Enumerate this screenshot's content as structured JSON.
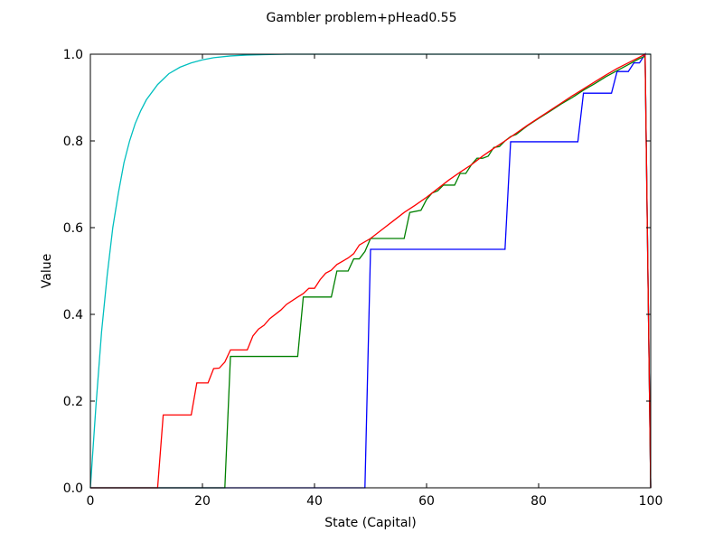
{
  "chart_data": {
    "type": "line",
    "title": "Gambler problem+pHead0.55",
    "xlabel": "State (Capital)",
    "ylabel": "Value",
    "xlim": [
      0,
      100
    ],
    "ylim": [
      0.0,
      1.0
    ],
    "xticks": [
      "0",
      "20",
      "40",
      "60",
      "80",
      "100"
    ],
    "yticks": [
      "0.0",
      "0.2",
      "0.4",
      "0.6",
      "0.8",
      "1.0"
    ],
    "grid": false,
    "series": [
      {
        "color": "#00bfbf",
        "x": [
          0,
          1,
          2,
          3,
          4,
          5,
          6,
          7,
          8,
          9,
          10,
          12,
          14,
          16,
          18,
          20,
          22,
          25,
          28,
          31,
          35,
          40,
          50,
          60,
          70,
          80,
          90,
          99,
          100
        ],
        "y": [
          0.0,
          0.19,
          0.36,
          0.49,
          0.6,
          0.68,
          0.75,
          0.8,
          0.84,
          0.87,
          0.895,
          0.93,
          0.955,
          0.97,
          0.98,
          0.987,
          0.992,
          0.996,
          0.998,
          0.999,
          1.0,
          1.0,
          1.0,
          1.0,
          1.0,
          1.0,
          1.0,
          1.0,
          1.0
        ]
      },
      {
        "color": "#0000ff",
        "x": [
          0,
          49,
          50,
          74,
          75,
          87,
          88,
          93,
          94,
          96,
          97,
          98,
          99,
          100
        ],
        "y": [
          0.0,
          0.0,
          0.55,
          0.55,
          0.798,
          0.798,
          0.91,
          0.91,
          0.96,
          0.96,
          0.98,
          0.98,
          1.0,
          0.0
        ]
      },
      {
        "color": "#008000",
        "x": [
          0,
          24,
          25,
          37,
          38,
          43,
          44,
          46,
          47,
          48,
          49,
          50,
          56,
          57,
          59,
          60,
          61,
          62,
          63,
          65,
          66,
          67,
          68,
          69,
          70,
          71,
          72,
          73,
          74,
          75,
          76,
          77,
          78,
          80,
          82,
          84,
          86,
          88,
          90,
          92,
          94,
          96,
          98,
          99,
          100
        ],
        "y": [
          0.0,
          0.0,
          0.303,
          0.303,
          0.44,
          0.44,
          0.5,
          0.5,
          0.528,
          0.528,
          0.545,
          0.575,
          0.575,
          0.635,
          0.64,
          0.665,
          0.68,
          0.685,
          0.698,
          0.698,
          0.725,
          0.725,
          0.745,
          0.76,
          0.76,
          0.765,
          0.785,
          0.787,
          0.8,
          0.81,
          0.815,
          0.825,
          0.835,
          0.852,
          0.868,
          0.885,
          0.9,
          0.917,
          0.932,
          0.948,
          0.962,
          0.976,
          0.99,
          0.995,
          0.0
        ]
      },
      {
        "color": "#ff0000",
        "x": [
          0,
          12,
          13,
          18,
          19,
          21,
          22,
          23,
          24,
          25,
          28,
          29,
          30,
          31,
          32,
          34,
          35,
          37,
          38,
          39,
          40,
          41,
          42,
          43,
          44,
          46,
          47,
          48,
          50,
          52,
          54,
          56,
          58,
          60,
          62,
          64,
          66,
          68,
          70,
          72,
          74,
          76,
          78,
          80,
          82,
          84,
          86,
          88,
          90,
          92,
          94,
          96,
          98,
          99,
          100
        ],
        "y": [
          0.0,
          0.0,
          0.168,
          0.168,
          0.242,
          0.242,
          0.275,
          0.276,
          0.29,
          0.318,
          0.318,
          0.35,
          0.366,
          0.375,
          0.39,
          0.41,
          0.423,
          0.44,
          0.448,
          0.46,
          0.46,
          0.48,
          0.495,
          0.502,
          0.515,
          0.53,
          0.54,
          0.56,
          0.575,
          0.595,
          0.615,
          0.635,
          0.652,
          0.67,
          0.69,
          0.71,
          0.728,
          0.745,
          0.765,
          0.783,
          0.8,
          0.818,
          0.836,
          0.853,
          0.87,
          0.887,
          0.904,
          0.92,
          0.936,
          0.952,
          0.967,
          0.98,
          0.993,
          1.0,
          0.0
        ]
      }
    ]
  }
}
